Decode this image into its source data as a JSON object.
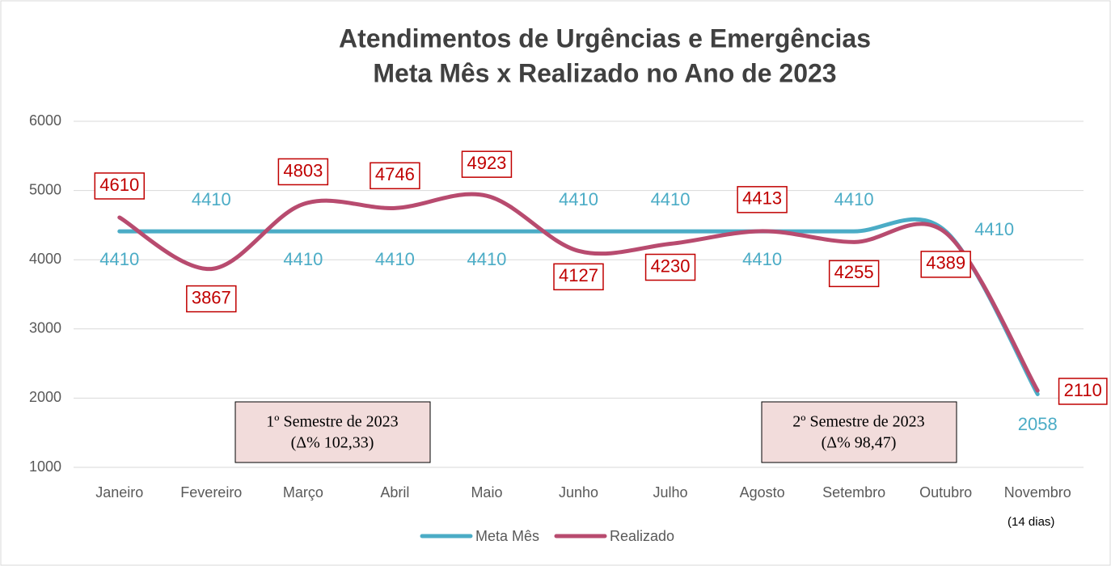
{
  "chart_data": {
    "type": "line",
    "title": "Atendimentos de Urgências e Emergências",
    "subtitle": "Meta Mês x Realizado no Ano de 2023",
    "categories": [
      "Janeiro",
      "Fevereiro",
      "Março",
      "Abril",
      "Maio",
      "Junho",
      "Julho",
      "Agosto",
      "Setembro",
      "Outubro",
      "Novembro"
    ],
    "category_note": "(14 dias)",
    "series": [
      {
        "name": "Meta Mês",
        "color": "#4bacc6",
        "label_color": "#4bacc6",
        "values": [
          4410,
          4410,
          4410,
          4410,
          4410,
          4410,
          4410,
          4410,
          4410,
          4410,
          2058
        ]
      },
      {
        "name": "Realizado",
        "color": "#b84b6f",
        "label_color": "#c00000",
        "values": [
          4610,
          3867,
          4803,
          4746,
          4923,
          4127,
          4230,
          4413,
          4255,
          4389,
          2110
        ]
      }
    ],
    "annotations": [
      [
        "1º Semestre de 2023",
        "(Δ% 102,33)"
      ],
      [
        "2º Semestre de 2023",
        "(Δ% 98,47)"
      ]
    ],
    "ylim": [
      1000,
      6000
    ],
    "yticks": [
      1000,
      2000,
      3000,
      4000,
      5000,
      6000
    ],
    "grid": true,
    "legend": "bottom"
  }
}
